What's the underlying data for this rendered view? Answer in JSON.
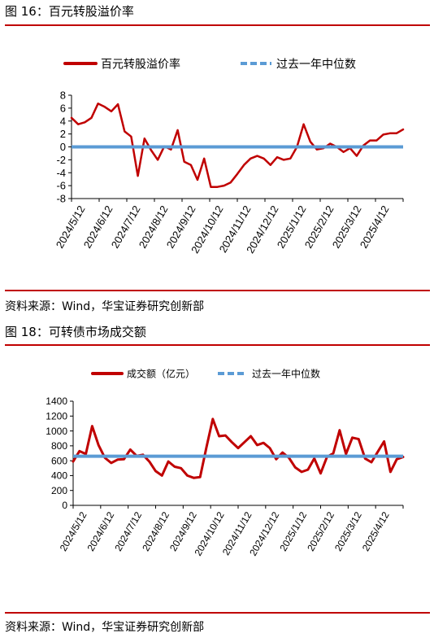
{
  "figures": [
    {
      "caption": "图 16：百元转股溢价率",
      "source": "资料来源：Wind，华宝证券研究创新部"
    },
    {
      "caption": "图 18：可转债市场成交额",
      "source": "资料来源：Wind，华宝证券研究创新部"
    }
  ],
  "colors": {
    "rule": "#c00000",
    "series": "#c00000",
    "median": "#5b9bd5"
  },
  "chart_data": [
    {
      "type": "line",
      "title": "",
      "xlabel": "",
      "ylabel": "",
      "ylim": [
        -8,
        8
      ],
      "yticks": [
        "8",
        "6",
        "4",
        "2",
        "0",
        "-2",
        "-4",
        "-6",
        "-8"
      ],
      "ytick_values": [
        8,
        6,
        4,
        2,
        0,
        -2,
        -4,
        -6,
        -8
      ],
      "xtick_labels": [
        "2024/5/12",
        "2024/6/12",
        "2024/7/12",
        "2024/8/12",
        "2024/9/12",
        "2024/10/12",
        "2024/11/12",
        "2024/12/12",
        "2025/1/12",
        "2025/2/12",
        "2025/3/12",
        "2025/4/12"
      ],
      "legend_position": "top",
      "grid": false,
      "series": [
        {
          "name": "百元转股溢价率",
          "values": [
            4.5,
            3.5,
            3.8,
            4.5,
            6.7,
            6.2,
            5.5,
            6.6,
            2.4,
            1.6,
            -4.5,
            1.3,
            -0.5,
            -2.0,
            0.1,
            -0.4,
            2.6,
            -2.3,
            -2.8,
            -5.1,
            -1.8,
            -6.2,
            -6.2,
            -6.0,
            -5.5,
            -4.2,
            -2.8,
            -1.8,
            -1.4,
            -1.8,
            -2.8,
            -1.6,
            -2.0,
            -1.8,
            0.0,
            3.5,
            0.8,
            -0.4,
            -0.2,
            0.5,
            0.0,
            -0.8,
            -0.2,
            -1.4,
            0.2,
            1.0,
            1.0,
            1.9,
            2.1,
            2.1,
            2.7
          ]
        },
        {
          "name": "过去一年中位数",
          "values": [
            0,
            0
          ]
        }
      ]
    },
    {
      "type": "line",
      "title": "",
      "xlabel": "",
      "ylabel": "",
      "ylim": [
        0,
        1400
      ],
      "yticks": [
        "1400",
        "1200",
        "1000",
        "800",
        "600",
        "400",
        "200",
        "0"
      ],
      "ytick_values": [
        1400,
        1200,
        1000,
        800,
        600,
        400,
        200,
        0
      ],
      "xtick_labels": [
        "2024/5/12",
        "2024/6/12",
        "2024/7/12",
        "2024/8/12",
        "2024/9/12",
        "2024/10/12",
        "2024/11/12",
        "2024/12/12",
        "2025/1/12",
        "2025/2/12",
        "2025/3/12",
        "2025/4/12"
      ],
      "legend_position": "top",
      "grid": false,
      "series": [
        {
          "name": "成交额（亿元）",
          "values": [
            590,
            730,
            690,
            1065,
            810,
            640,
            570,
            615,
            620,
            750,
            665,
            680,
            590,
            460,
            400,
            590,
            520,
            500,
            400,
            370,
            380,
            780,
            1160,
            930,
            940,
            850,
            770,
            850,
            930,
            810,
            840,
            770,
            620,
            710,
            640,
            510,
            450,
            480,
            630,
            430,
            650,
            700,
            1010,
            690,
            910,
            890,
            630,
            580,
            720,
            860,
            450,
            620,
            650
          ]
        },
        {
          "name": "过去一年中位数",
          "values": [
            660,
            660
          ]
        }
      ]
    }
  ]
}
